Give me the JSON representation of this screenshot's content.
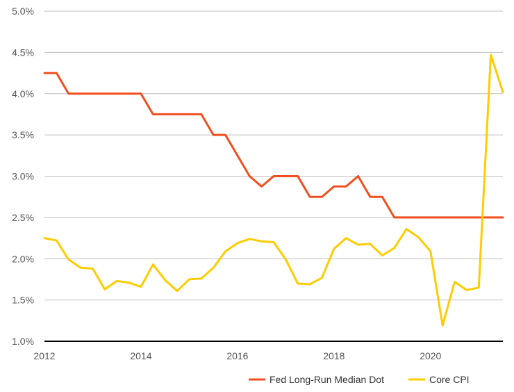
{
  "chart_data": {
    "type": "line",
    "title": "",
    "xlabel": "",
    "ylabel": "",
    "xlim": [
      2012,
      2021.5
    ],
    "ylim": [
      1.0,
      5.0
    ],
    "x_ticks": [
      2012,
      2014,
      2016,
      2018,
      2020
    ],
    "x_tick_labels": [
      "2012",
      "2014",
      "2016",
      "2018",
      "2020"
    ],
    "y_ticks": [
      1.0,
      1.5,
      2.0,
      2.5,
      3.0,
      3.5,
      4.0,
      4.5,
      5.0
    ],
    "y_tick_labels": [
      "1.0%",
      "1.5%",
      "2.0%",
      "2.5%",
      "3.0%",
      "3.5%",
      "4.0%",
      "4.5%",
      "5.0%"
    ],
    "grid": "horizontal",
    "legend_position": "bottom-right",
    "series": [
      {
        "name": "Fed Long-Run Median Dot",
        "color": "#F24E1E",
        "x": [
          2012.0,
          2012.25,
          2012.5,
          2012.75,
          2013.0,
          2013.25,
          2013.5,
          2013.75,
          2014.0,
          2014.25,
          2014.5,
          2014.75,
          2015.0,
          2015.25,
          2015.5,
          2015.75,
          2016.0,
          2016.25,
          2016.5,
          2016.75,
          2017.0,
          2017.25,
          2017.5,
          2017.75,
          2018.0,
          2018.25,
          2018.5,
          2018.75,
          2019.0,
          2019.25,
          2019.5,
          2019.75,
          2020.0,
          2020.25,
          2020.5,
          2020.75,
          2021.0,
          2021.25,
          2021.5
        ],
        "values": [
          4.25,
          4.25,
          4.0,
          4.0,
          4.0,
          4.0,
          4.0,
          4.0,
          4.0,
          3.75,
          3.75,
          3.75,
          3.75,
          3.75,
          3.5,
          3.5,
          3.25,
          3.0,
          2.875,
          3.0,
          3.0,
          3.0,
          2.75,
          2.75,
          2.875,
          2.875,
          3.0,
          2.75,
          2.75,
          2.5,
          2.5,
          2.5,
          2.5,
          2.5,
          2.5,
          2.5,
          2.5,
          2.5,
          2.5
        ]
      },
      {
        "name": "Core CPI",
        "color": "#FFCC00",
        "x": [
          2012.0,
          2012.25,
          2012.5,
          2012.75,
          2013.0,
          2013.25,
          2013.5,
          2013.75,
          2014.0,
          2014.25,
          2014.5,
          2014.75,
          2015.0,
          2015.25,
          2015.5,
          2015.75,
          2016.0,
          2016.25,
          2016.5,
          2016.75,
          2017.0,
          2017.25,
          2017.5,
          2017.75,
          2018.0,
          2018.25,
          2018.5,
          2018.75,
          2019.0,
          2019.25,
          2019.5,
          2019.75,
          2020.0,
          2020.25,
          2020.5,
          2020.75,
          2021.0,
          2021.25,
          2021.5
        ],
        "values": [
          2.25,
          2.22,
          1.99,
          1.89,
          1.88,
          1.63,
          1.73,
          1.71,
          1.66,
          1.93,
          1.74,
          1.61,
          1.75,
          1.76,
          1.89,
          2.09,
          2.19,
          2.24,
          2.21,
          2.2,
          1.99,
          1.7,
          1.69,
          1.77,
          2.12,
          2.25,
          2.17,
          2.18,
          2.04,
          2.13,
          2.36,
          2.26,
          2.09,
          1.19,
          1.72,
          1.62,
          1.65,
          4.47,
          4.02
        ]
      }
    ]
  }
}
